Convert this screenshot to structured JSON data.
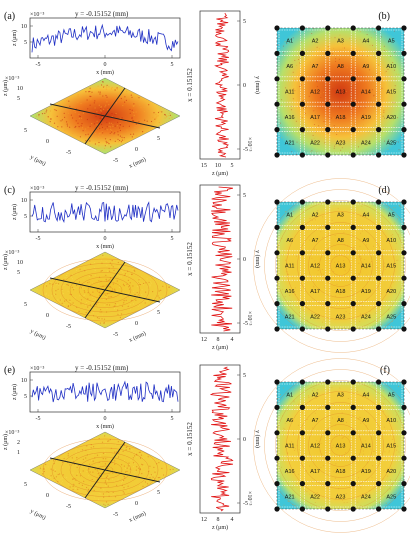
{
  "panels": [
    {
      "label": "(a)",
      "map_label": "(b)",
      "line_title": "y = -0.15152 (mm)",
      "line_xlabel": "x (mm)",
      "line_ylabel": "z (μm)",
      "line_scale": "×10⁻³",
      "line_xticks": [
        "-5",
        "0",
        "5"
      ],
      "line_yticks": [
        "10",
        "5"
      ],
      "surf_xlabel": "x (mm)",
      "surf_ylabel": "y (μm)",
      "surf_zlabel": "z (μm)",
      "surf_scale": "×10⁻³",
      "surf_zticks": [
        "10",
        "5"
      ],
      "surf_xticks": [
        "-5",
        "0",
        "5"
      ],
      "surf_yticks": [
        "5",
        "0",
        "-5"
      ],
      "vert_title": "x = 0.15152",
      "vert_ylabel": "y (mm)",
      "vert_xlabel": "z (μm)",
      "vert_scale": "×10⁻³",
      "vert_xticks": [
        "15",
        "10",
        "5"
      ],
      "vert_yticks": [
        "5",
        "0",
        "-5"
      ],
      "color": "#d9601a",
      "stripes": false
    },
    {
      "label": "(c)",
      "map_label": "(d)",
      "line_title": "y = -0.15152 (mm)",
      "line_xlabel": "x (mm)",
      "line_ylabel": "z (μm)",
      "line_scale": "×10⁻³",
      "line_xticks": [
        "-5",
        "0",
        "5"
      ],
      "line_yticks": [
        "10",
        "5"
      ],
      "surf_xlabel": "x (mm)",
      "surf_ylabel": "y (μm)",
      "surf_zlabel": "z (μm)",
      "surf_scale": "×10⁻³",
      "surf_zticks": [
        "10",
        "5"
      ],
      "surf_xticks": [
        "-5",
        "0",
        "5"
      ],
      "surf_yticks": [
        "5",
        "0",
        "-5"
      ],
      "vert_title": "x = 0.15152",
      "vert_ylabel": "y (mm)",
      "vert_xlabel": "z (μm)",
      "vert_scale": "×10⁻³",
      "vert_xticks": [
        "12",
        "8",
        "4"
      ],
      "vert_yticks": [
        "5",
        "0",
        "-5"
      ],
      "color": "#e8c41e",
      "stripes": true
    },
    {
      "label": "(e)",
      "map_label": "(f)",
      "line_title": "y = -0.15152 (mm)",
      "line_xlabel": "x (mm)",
      "line_ylabel": "z (μm)",
      "line_scale": "×10⁻³",
      "line_xticks": [
        "-5",
        "0",
        "5"
      ],
      "line_yticks": [
        "10",
        "5"
      ],
      "surf_xlabel": "x (mm)",
      "surf_ylabel": "y (μm)",
      "surf_zlabel": "z (μm)",
      "surf_scale": "×10⁻³",
      "surf_zticks": [
        "2",
        "1"
      ],
      "surf_xticks": [
        "-5",
        "0",
        "5"
      ],
      "surf_yticks": [
        "5",
        "0",
        "-5"
      ],
      "vert_title": "x = 0.15152",
      "vert_ylabel": "y (mm)",
      "vert_xlabel": "z (μm)",
      "vert_scale": "×10⁻³",
      "vert_xticks": [
        "12",
        "8",
        "4"
      ],
      "vert_yticks": [
        "5",
        "0",
        "-5"
      ],
      "color": "#ecc830",
      "stripes": true
    }
  ],
  "grid_cells": [
    "A1",
    "A2",
    "A3",
    "A4",
    "A5",
    "A6",
    "A7",
    "A8",
    "A9",
    "A10",
    "A11",
    "A12",
    "A13",
    "A14",
    "A15",
    "A16",
    "A17",
    "A18",
    "A19",
    "A20",
    "A21",
    "A22",
    "A23",
    "A24",
    "A25"
  ],
  "colors": {
    "line_blue": "#1f2fc4",
    "line_red": "#e01010",
    "dot": "#111111",
    "frame": "#333333"
  }
}
